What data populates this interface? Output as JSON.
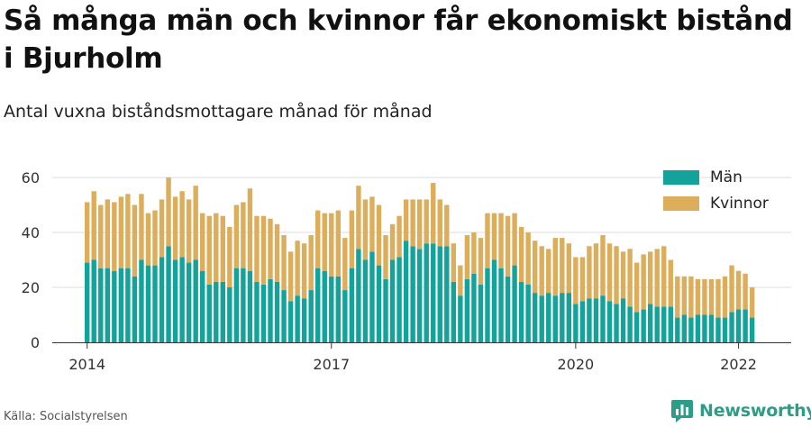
{
  "header": {
    "title": "Så många män och kvinnor får ekonomiskt bistånd i Bjurholm",
    "subtitle": "Antal vuxna biståndsmottagare månad för månad"
  },
  "footer": {
    "source": "Källa: Socialstyrelsen",
    "brand": "Newsworthy"
  },
  "colors": {
    "men": "#13a39a",
    "women": "#dcae5c",
    "grid": "#dddddd",
    "axis": "#333333"
  },
  "chart_data": {
    "type": "bar",
    "stacked": true,
    "x_start": "2014-01",
    "x_end": "2022-04",
    "x_ticks": [
      "2014",
      "2017",
      "2020",
      "2022"
    ],
    "y_ticks": [
      "0",
      "20",
      "40",
      "60"
    ],
    "ylim": [
      0,
      62
    ],
    "grid": true,
    "legend_position": "top-right",
    "series": [
      {
        "name": "Män",
        "values": [
          29,
          30,
          27,
          27,
          26,
          27,
          27,
          24,
          30,
          28,
          28,
          31,
          35,
          30,
          31,
          29,
          30,
          26,
          21,
          22,
          22,
          20,
          27,
          27,
          26,
          22,
          21,
          23,
          22,
          19,
          15,
          17,
          16,
          19,
          27,
          26,
          24,
          24,
          19,
          27,
          34,
          30,
          33,
          28,
          23,
          30,
          31,
          37,
          35,
          34,
          36,
          36,
          35,
          35,
          22,
          17,
          23,
          25,
          21,
          27,
          30,
          27,
          24,
          28,
          22,
          21,
          18,
          17,
          18,
          17,
          18,
          18,
          14,
          15,
          16,
          16,
          17,
          15,
          14,
          16,
          13,
          11,
          12,
          14,
          13,
          13,
          13,
          9,
          10,
          9,
          10,
          10,
          10,
          9,
          9,
          11,
          12,
          12,
          9
        ]
      },
      {
        "name": "Kvinnor",
        "values": [
          22,
          25,
          23,
          25,
          25,
          26,
          27,
          26,
          24,
          19,
          20,
          21,
          25,
          23,
          24,
          23,
          27,
          21,
          25,
          25,
          24,
          22,
          23,
          24,
          30,
          24,
          25,
          22,
          21,
          20,
          18,
          20,
          20,
          20,
          21,
          21,
          23,
          24,
          19,
          21,
          23,
          22,
          20,
          22,
          16,
          13,
          15,
          15,
          17,
          18,
          16,
          22,
          17,
          15,
          14,
          11,
          16,
          15,
          17,
          20,
          17,
          20,
          22,
          19,
          20,
          19,
          19,
          18,
          16,
          21,
          20,
          18,
          17,
          16,
          19,
          20,
          22,
          21,
          21,
          17,
          21,
          18,
          20,
          19,
          21,
          22,
          17,
          15,
          14,
          15,
          13,
          13,
          13,
          14,
          15,
          17,
          14,
          13,
          11
        ]
      }
    ]
  }
}
